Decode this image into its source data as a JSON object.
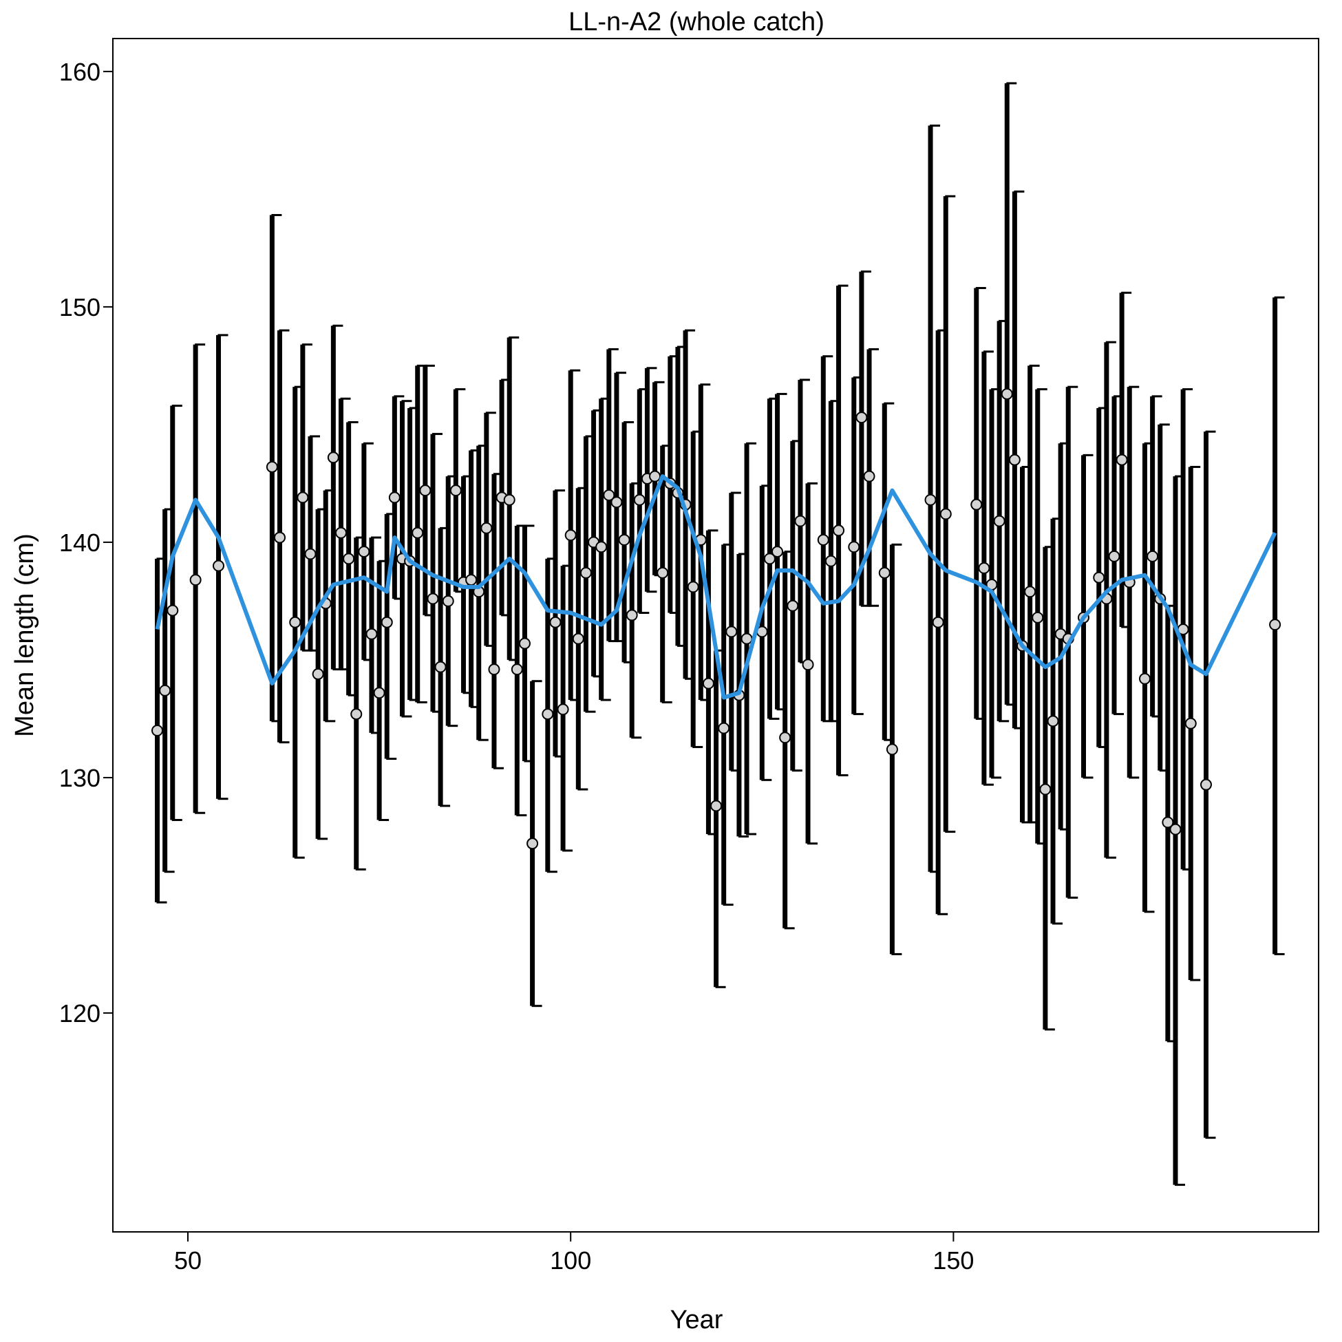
{
  "chart_data": {
    "type": "errorbar",
    "title": "LL-n-A2 (whole catch)",
    "x_label": "Year",
    "y_label": "Mean length (cm)",
    "xlim": [
      40.2,
      197.7
    ],
    "ylim": [
      110.7,
      161.4
    ],
    "xticks": [
      50,
      100,
      150
    ],
    "yticks": [
      120,
      130,
      140,
      150,
      160
    ],
    "points": {
      "color": "#d3d3d3",
      "bar_color": "#000000",
      "x": [
        46,
        47,
        48,
        51,
        54,
        61,
        62,
        64,
        65,
        66,
        67,
        68,
        69,
        70,
        71,
        72,
        73,
        74,
        75,
        76,
        77,
        78,
        79,
        80,
        81,
        82,
        83,
        84,
        85,
        86,
        87,
        88,
        89,
        90,
        91,
        92,
        93,
        94,
        95,
        97,
        98,
        99,
        100,
        101,
        102,
        103,
        104,
        105,
        106,
        107,
        108,
        109,
        110,
        111,
        112,
        113,
        114,
        115,
        116,
        117,
        118,
        119,
        120,
        121,
        122,
        123,
        125,
        126,
        127,
        128,
        129,
        130,
        131,
        133,
        134,
        135,
        137,
        138,
        139,
        141,
        142,
        147,
        148,
        149,
        153,
        154,
        155,
        156,
        157,
        158,
        159,
        160,
        161,
        162,
        163,
        164,
        165,
        167,
        169,
        170,
        171,
        172,
        173,
        175,
        176,
        177,
        178,
        179,
        180,
        181,
        183,
        192
      ],
      "values": [
        132.0,
        133.7,
        137.1,
        138.4,
        139.0,
        143.2,
        140.2,
        136.6,
        141.9,
        139.5,
        134.4,
        137.4,
        143.6,
        140.4,
        139.3,
        132.7,
        139.6,
        136.1,
        133.6,
        136.6,
        141.9,
        139.3,
        139.2,
        140.4,
        142.2,
        137.6,
        134.7,
        137.5,
        142.2,
        138.3,
        138.4,
        137.9,
        140.6,
        134.6,
        141.9,
        141.8,
        134.6,
        135.7,
        127.2,
        132.7,
        136.6,
        132.9,
        140.3,
        135.9,
        138.7,
        140.0,
        139.8,
        142.0,
        141.7,
        140.1,
        136.9,
        141.8,
        142.7,
        142.8,
        138.7,
        142.5,
        142.1,
        141.6,
        138.1,
        140.1,
        134.0,
        128.8,
        132.1,
        136.2,
        133.5,
        135.9,
        136.2,
        139.3,
        139.6,
        131.7,
        137.3,
        140.9,
        134.8,
        140.1,
        139.2,
        140.5,
        139.8,
        145.3,
        142.8,
        138.7,
        131.2,
        141.8,
        136.6,
        141.2,
        141.6,
        138.9,
        138.2,
        140.9,
        146.3,
        143.5,
        135.6,
        137.9,
        136.8,
        129.5,
        132.4,
        136.1,
        135.9,
        136.8,
        138.5,
        137.6,
        139.4,
        143.5,
        138.3,
        134.2,
        139.4,
        137.6,
        128.1,
        127.8,
        136.3,
        132.3,
        129.7,
        136.5
      ],
      "lower": [
        124.7,
        126.0,
        128.2,
        128.5,
        129.1,
        132.4,
        131.5,
        126.6,
        135.4,
        135.4,
        127.4,
        132.4,
        134.6,
        134.6,
        133.5,
        126.1,
        135.0,
        131.9,
        128.2,
        130.8,
        137.6,
        132.6,
        133.3,
        133.2,
        136.9,
        132.8,
        128.8,
        132.2,
        137.9,
        133.6,
        133.0,
        131.6,
        135.6,
        130.4,
        136.9,
        135.0,
        128.4,
        130.7,
        120.3,
        126.0,
        130.9,
        126.9,
        133.3,
        129.5,
        132.8,
        134.3,
        133.3,
        135.8,
        135.8,
        134.9,
        131.7,
        137.0,
        137.9,
        138.6,
        133.2,
        137.0,
        135.6,
        134.2,
        131.3,
        133.3,
        127.6,
        121.1,
        124.6,
        130.3,
        127.5,
        127.6,
        129.9,
        132.5,
        132.9,
        123.6,
        130.3,
        134.9,
        127.2,
        132.4,
        132.4,
        130.1,
        132.7,
        137.3,
        137.3,
        131.6,
        122.5,
        126.0,
        124.2,
        127.7,
        132.5,
        129.7,
        130.0,
        132.4,
        133.1,
        132.1,
        128.1,
        128.1,
        127.2,
        119.3,
        123.8,
        127.8,
        124.9,
        130.0,
        131.3,
        126.6,
        132.7,
        136.4,
        130.0,
        124.3,
        132.6,
        130.3,
        118.8,
        112.7,
        126.1,
        121.4,
        114.7,
        122.5
      ],
      "upper": [
        139.3,
        141.4,
        145.8,
        148.4,
        148.8,
        153.9,
        149.0,
        146.6,
        148.4,
        144.5,
        141.4,
        142.2,
        149.2,
        146.1,
        145.1,
        140.2,
        144.2,
        140.2,
        139.2,
        141.2,
        146.2,
        146.0,
        145.7,
        147.5,
        147.5,
        144.6,
        140.6,
        142.8,
        146.5,
        142.8,
        143.9,
        144.1,
        145.5,
        142.9,
        146.9,
        148.7,
        140.7,
        140.7,
        134.1,
        139.3,
        142.2,
        139.0,
        147.3,
        142.3,
        144.5,
        145.6,
        146.1,
        148.2,
        147.2,
        145.1,
        142.5,
        146.5,
        147.4,
        146.8,
        144.1,
        147.9,
        148.3,
        149.0,
        144.7,
        146.7,
        140.5,
        135.4,
        139.9,
        142.1,
        139.5,
        144.2,
        142.4,
        146.1,
        146.3,
        139.6,
        144.3,
        146.9,
        142.5,
        147.9,
        146.0,
        150.9,
        147.0,
        151.5,
        148.2,
        145.9,
        139.9,
        157.7,
        149.0,
        154.7,
        150.8,
        148.1,
        146.5,
        149.4,
        159.5,
        154.9,
        143.2,
        147.5,
        146.5,
        139.8,
        141.0,
        144.2,
        146.6,
        143.7,
        145.7,
        148.5,
        146.2,
        150.6,
        146.6,
        144.2,
        146.2,
        145.0,
        137.3,
        142.8,
        146.5,
        143.2,
        144.7,
        150.4
      ]
    },
    "fit": {
      "color": "#2e92de",
      "x": [
        46,
        48,
        51,
        54,
        61,
        64,
        67,
        69,
        73,
        76,
        77,
        79,
        82,
        86,
        88,
        92,
        94,
        97,
        100,
        104,
        106,
        109,
        112,
        114,
        117,
        119,
        120,
        122,
        125,
        127,
        129,
        131,
        133,
        135,
        137,
        139,
        142,
        147,
        149,
        153,
        155,
        159,
        162,
        164,
        167,
        170,
        172,
        175,
        178,
        181,
        183,
        192
      ],
      "values": [
        136.3,
        139.4,
        141.8,
        140.2,
        134.0,
        135.4,
        137.2,
        138.2,
        138.5,
        137.9,
        140.2,
        139.2,
        138.6,
        138.1,
        138.1,
        139.3,
        138.7,
        137.1,
        137.0,
        136.5,
        137.1,
        140.3,
        142.8,
        142.3,
        139.4,
        135.4,
        133.4,
        133.6,
        137.2,
        138.8,
        138.8,
        138.3,
        137.4,
        137.5,
        138.2,
        139.7,
        142.2,
        139.5,
        138.8,
        138.3,
        137.9,
        135.6,
        134.7,
        135.1,
        136.8,
        137.9,
        138.4,
        138.6,
        137.2,
        134.8,
        134.4,
        140.4
      ]
    }
  }
}
